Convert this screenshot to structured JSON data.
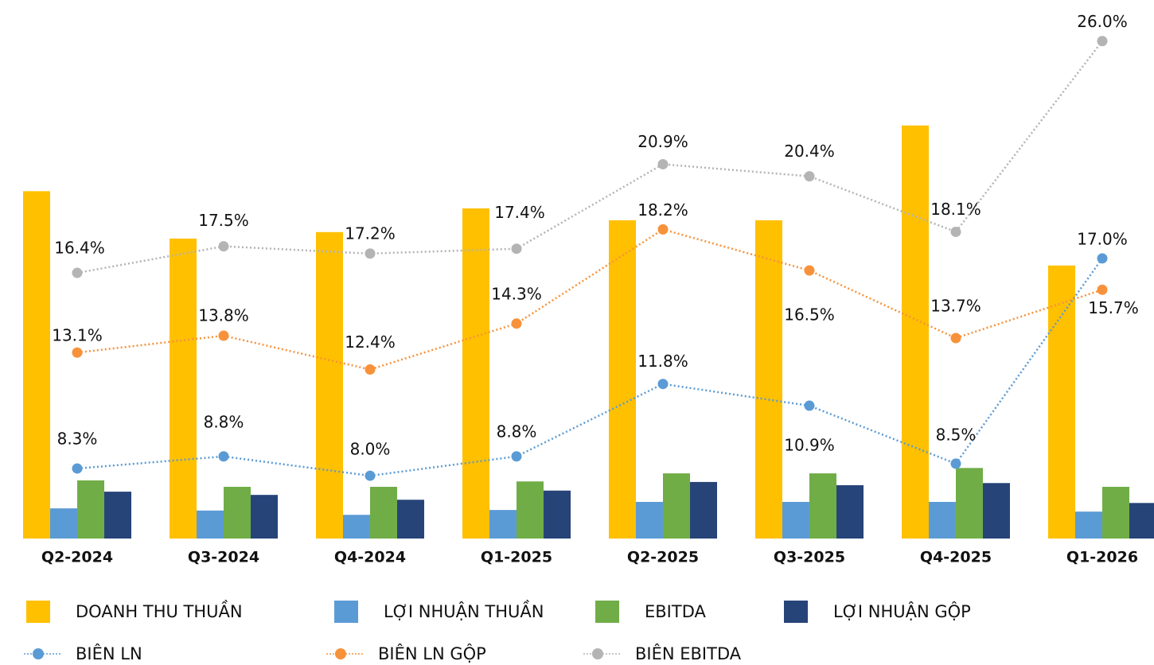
{
  "chart_data": {
    "type": "bar",
    "categories": [
      "Q2-2024",
      "Q3-2024",
      "Q4-2024",
      "Q1-2025",
      "Q2-2025",
      "Q3-2025",
      "Q4-2025",
      "Q1-2026"
    ],
    "ylim": [
      0,
      100
    ],
    "y2lim": [
      5.4,
      27.7
    ],
    "series": [
      {
        "name": "DOANH THU THUẦN",
        "color": "#FFC000",
        "values": [
          64.5,
          55.7,
          56.9,
          61.3,
          59.1,
          59.1,
          76.7,
          50.7
        ]
      },
      {
        "name": "LỢI NHUẬN THUẦN",
        "color": "#5B9BD5",
        "values": [
          5.6,
          5.2,
          4.4,
          5.3,
          6.8,
          6.8,
          6.8,
          5.0
        ]
      },
      {
        "name": "EBITDA",
        "color": "#70AD47",
        "values": [
          10.8,
          9.6,
          9.6,
          10.6,
          12.1,
          12.1,
          13.1,
          9.6
        ]
      },
      {
        "name": "LỢI NHUẬN GỘP",
        "color": "#264478",
        "values": [
          8.7,
          8.1,
          7.2,
          8.9,
          10.5,
          9.9,
          10.3,
          6.6
        ]
      },
      {
        "name": "BIÊN LN",
        "color": "#5B9BD5",
        "type": "line",
        "axis": "y2",
        "values": [
          8.3,
          8.8,
          8.0,
          8.8,
          11.8,
          10.9,
          8.5,
          17.0
        ],
        "value_labels": [
          "8.3%",
          "8.8%",
          "8.0%",
          "8.8%",
          "11.8%",
          "10.9%",
          "8.5%",
          "17.0%"
        ]
      },
      {
        "name": "BIÊN LN GỘP",
        "color": "#F7923A",
        "type": "line",
        "axis": "y2",
        "values": [
          13.1,
          13.8,
          12.4,
          14.3,
          18.2,
          16.5,
          13.7,
          15.7
        ],
        "value_labels": [
          "13.1%",
          "13.8%",
          "12.4%",
          "14.3%",
          "18.2%",
          "16.5%",
          "13.7%",
          "15.7%"
        ]
      },
      {
        "name": "BIÊN EBITDA",
        "color": "#B4B4B4",
        "type": "line",
        "axis": "y2",
        "values": [
          16.4,
          17.5,
          17.2,
          17.4,
          20.9,
          20.4,
          18.1,
          26.0
        ],
        "value_labels": [
          "16.4%",
          "17.5%",
          "17.2%",
          "17.4%",
          "20.9%",
          "20.4%",
          "18.1%",
          "26.0%"
        ]
      }
    ]
  }
}
